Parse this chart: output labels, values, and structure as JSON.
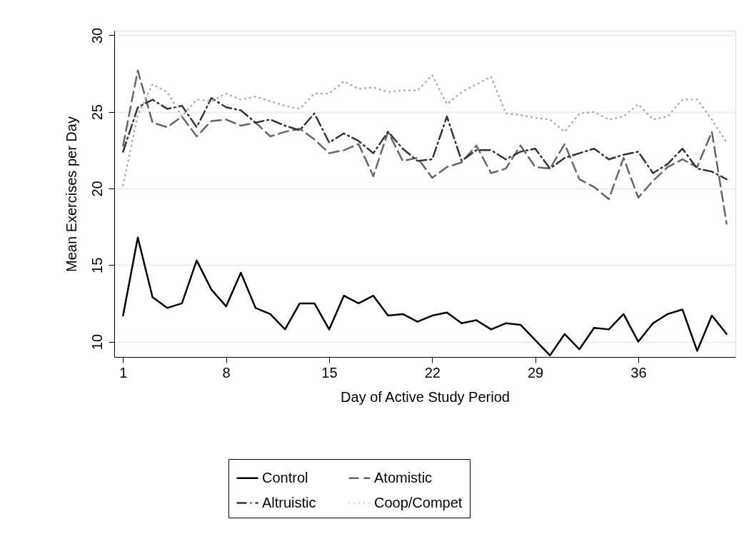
{
  "chart_data": {
    "type": "line",
    "xlabel": "Day of Active Study Period",
    "ylabel": "Mean Exercises per Day",
    "x": [
      1,
      2,
      3,
      4,
      5,
      6,
      7,
      8,
      9,
      10,
      11,
      12,
      13,
      14,
      15,
      16,
      17,
      18,
      19,
      20,
      21,
      22,
      23,
      24,
      25,
      26,
      27,
      28,
      29,
      30,
      31,
      32,
      33,
      34,
      35,
      36,
      37,
      38,
      39,
      40,
      41,
      42
    ],
    "series": [
      {
        "name": "Control",
        "color": "#000000",
        "line_style": "solid",
        "values": [
          11.7,
          16.8,
          12.9,
          12.2,
          12.5,
          15.3,
          13.4,
          12.3,
          14.5,
          12.2,
          11.8,
          10.8,
          12.5,
          12.5,
          10.8,
          13.0,
          12.5,
          13.0,
          11.7,
          11.8,
          11.3,
          11.7,
          11.9,
          11.2,
          11.4,
          10.8,
          11.2,
          11.1,
          10.1,
          9.1,
          10.5,
          9.5,
          10.9,
          10.8,
          11.8,
          10.0,
          11.2,
          11.8,
          12.1,
          9.4,
          11.7,
          10.5
        ]
      },
      {
        "name": "Atomistic",
        "color": "#666666",
        "line_style": "dashed",
        "values": [
          22.8,
          27.7,
          24.3,
          24.0,
          24.7,
          23.4,
          24.4,
          24.5,
          24.1,
          24.3,
          23.4,
          23.7,
          23.9,
          23.2,
          22.3,
          22.5,
          22.9,
          20.8,
          23.7,
          21.8,
          22.0,
          20.7,
          21.4,
          21.7,
          22.8,
          21.0,
          21.3,
          22.8,
          21.4,
          21.3,
          22.9,
          20.6,
          20.1,
          19.3,
          22.0,
          19.4,
          20.5,
          21.4,
          21.9,
          21.4,
          23.7,
          17.7
        ]
      },
      {
        "name": "Altruistic",
        "color": "#333333",
        "line_style": "dashdot",
        "values": [
          22.4,
          25.3,
          25.8,
          25.2,
          25.4,
          24.0,
          25.9,
          25.3,
          25.1,
          24.3,
          24.5,
          24.1,
          23.8,
          24.9,
          23.0,
          23.6,
          23.1,
          22.3,
          23.7,
          22.6,
          21.8,
          21.9,
          24.7,
          21.8,
          22.5,
          22.5,
          21.9,
          22.4,
          22.6,
          21.3,
          22.0,
          22.3,
          22.6,
          21.9,
          22.2,
          22.4,
          21.0,
          21.6,
          22.6,
          21.3,
          21.1,
          20.6
        ]
      },
      {
        "name": "Coop/Compet",
        "color": "#b0b0b0",
        "line_style": "dotted",
        "values": [
          20.2,
          24.8,
          26.8,
          26.3,
          24.7,
          25.8,
          25.7,
          26.2,
          25.8,
          26.0,
          25.7,
          25.4,
          25.2,
          26.2,
          26.2,
          27.0,
          26.5,
          26.6,
          26.3,
          26.4,
          26.4,
          27.4,
          25.5,
          26.3,
          26.8,
          27.3,
          24.9,
          24.8,
          24.6,
          24.5,
          23.7,
          24.9,
          25.0,
          24.5,
          24.7,
          25.5,
          24.5,
          24.7,
          25.8,
          25.8,
          24.5,
          23.0
        ]
      }
    ],
    "xlim": [
      0.4,
      42.6
    ],
    "ylim": [
      9.0,
      30.3
    ],
    "xticks": [
      1,
      8,
      15,
      22,
      29,
      36
    ],
    "yticks": [
      10,
      15,
      20,
      25,
      30
    ],
    "grid": "y",
    "legend": "bottom",
    "marker": "none"
  }
}
